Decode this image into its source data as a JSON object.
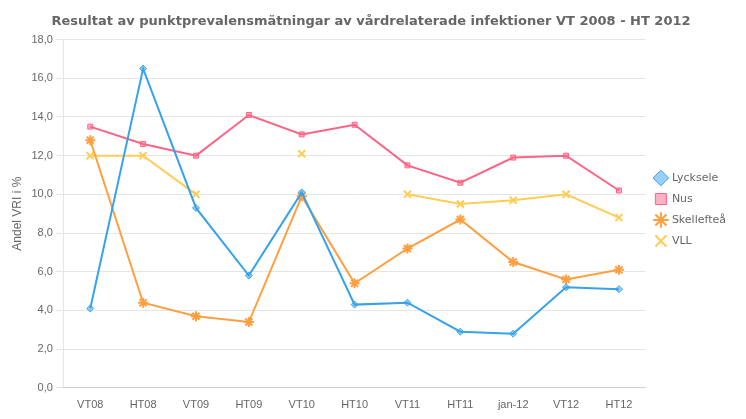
{
  "chart_data": {
    "type": "line",
    "title": "Resultat av punktprevalensmätningar av vårdrelaterade infektioner VT 2008 - HT 2012",
    "y_label": "Andel VRI i %",
    "categories": [
      "VT08",
      "HT08",
      "VT09",
      "HT09",
      "VT10",
      "HT10",
      "VT11",
      "HT11",
      "jan-12",
      "VT12",
      "HT12"
    ],
    "series": [
      {
        "name": "Lycksele",
        "marker": "diamond",
        "values": [
          4.1,
          16.5,
          9.3,
          5.8,
          10.1,
          4.3,
          4.4,
          2.9,
          2.8,
          5.2,
          5.1
        ]
      },
      {
        "name": "Nus",
        "marker": "square",
        "values": [
          13.5,
          12.6,
          12.0,
          14.1,
          13.1,
          13.6,
          11.5,
          10.6,
          11.9,
          12.0,
          10.2
        ]
      },
      {
        "name": "Skellefteå",
        "marker": "star",
        "values": [
          12.8,
          4.4,
          3.7,
          3.4,
          9.9,
          5.4,
          7.2,
          8.7,
          6.5,
          5.6,
          6.1
        ]
      },
      {
        "name": "VLL",
        "marker": "x",
        "values": [
          12.0,
          12.0,
          10.0,
          null,
          12.1,
          null,
          10.0,
          9.5,
          9.7,
          10.0,
          8.8
        ]
      }
    ],
    "ylim": [
      0.0,
      18.0
    ],
    "yticks": [
      {
        "value": 0.0,
        "label": "0,0"
      },
      {
        "value": 2.0,
        "label": "2,0"
      },
      {
        "value": 4.0,
        "label": "4,0"
      },
      {
        "value": 6.0,
        "label": "6,0"
      },
      {
        "value": 8.0,
        "label": "8,0"
      },
      {
        "value": 10.0,
        "label": "10,0"
      },
      {
        "value": 12.0,
        "label": "12,0"
      },
      {
        "value": 14.0,
        "label": "14,0"
      },
      {
        "value": 16.0,
        "label": "16,0"
      },
      {
        "value": 18.0,
        "label": "18,0"
      }
    ],
    "grid": true,
    "legend": "right"
  }
}
